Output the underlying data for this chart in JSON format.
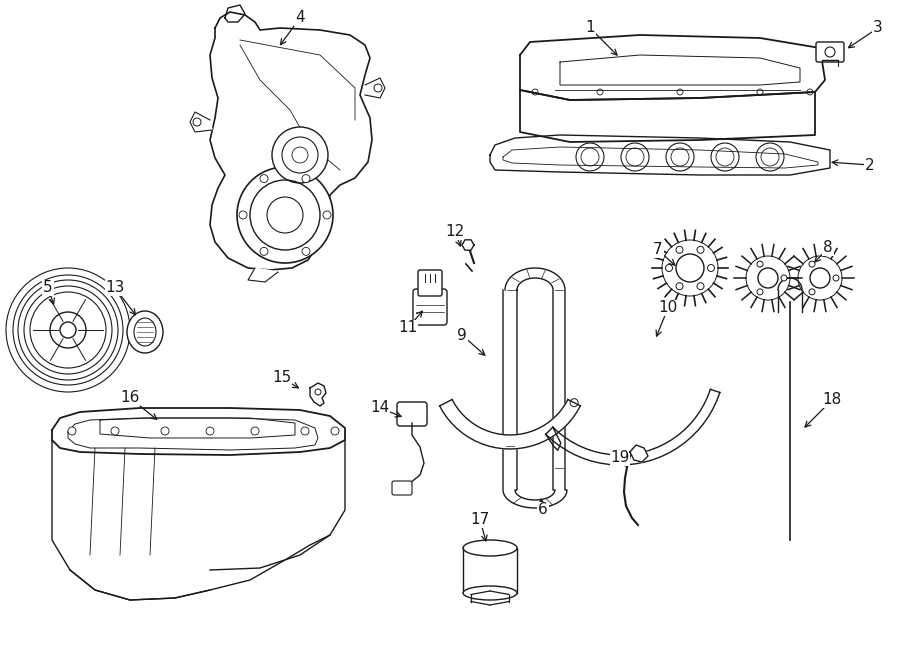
{
  "bg_color": "#ffffff",
  "line_color": "#1a1a1a",
  "lw": 1.0,
  "fig_width": 9.0,
  "fig_height": 6.61,
  "dpi": 100
}
